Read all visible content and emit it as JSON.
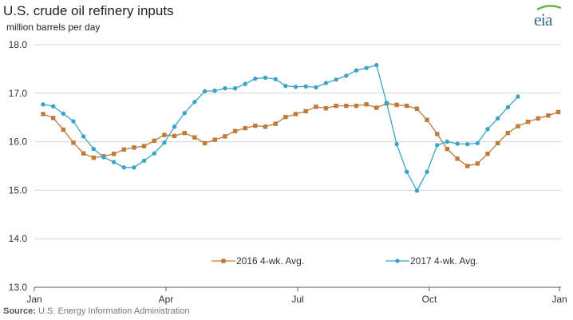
{
  "title": "U.S. crude oil refinery inputs",
  "subtitle": "million barrels per day",
  "logo_text": "eia",
  "source": {
    "label": "Source:",
    "text": "U.S. Energy Information Administration"
  },
  "chart_data": {
    "type": "line",
    "title": "U.S. crude oil refinery inputs",
    "ylabel": "million barrels per day",
    "xlabel": "",
    "ylim": [
      13.0,
      18.0
    ],
    "yticks": [
      "18.0",
      "17.0",
      "16.0",
      "15.0",
      "14.0",
      "13.0"
    ],
    "xticks": [
      "Jan",
      "Apr",
      "Jul",
      "Oct",
      "Jan"
    ],
    "grid": "horizontal",
    "legend_position": "bottom",
    "series": [
      {
        "name": "2016 4-wk. Avg.",
        "color": "#c07a3a",
        "marker": "square",
        "x": [
          0,
          1,
          2,
          3,
          4,
          5,
          6,
          7,
          8,
          9,
          10,
          11,
          12,
          13,
          14,
          15,
          16,
          17,
          18,
          19,
          20,
          21,
          22,
          23,
          24,
          25,
          26,
          27,
          28,
          29,
          30,
          31,
          32,
          33,
          34,
          35,
          36,
          37,
          38,
          39,
          40,
          41,
          42,
          43,
          44,
          45,
          46,
          47,
          48,
          49,
          50,
          51
        ],
        "values": [
          16.57,
          16.49,
          16.25,
          15.98,
          15.76,
          15.67,
          15.7,
          15.75,
          15.84,
          15.88,
          15.91,
          16.02,
          16.14,
          16.12,
          16.18,
          16.09,
          15.97,
          16.04,
          16.11,
          16.22,
          16.28,
          16.33,
          16.31,
          16.37,
          16.51,
          16.57,
          16.63,
          16.72,
          16.69,
          16.74,
          16.74,
          16.74,
          16.77,
          16.7,
          16.79,
          16.76,
          16.74,
          16.68,
          16.45,
          16.16,
          15.85,
          15.65,
          15.5,
          15.55,
          15.75,
          15.97,
          16.18,
          16.32,
          16.41,
          16.48,
          16.54,
          16.61
        ]
      },
      {
        "name": "2017 4-wk. Avg.",
        "color": "#3aa4c8",
        "marker": "circle",
        "x": [
          0,
          1,
          2,
          3,
          4,
          5,
          6,
          7,
          8,
          9,
          10,
          11,
          12,
          13,
          14,
          15,
          16,
          17,
          18,
          19,
          20,
          21,
          22,
          23,
          24,
          25,
          26,
          27,
          28,
          29,
          30,
          31,
          32,
          33,
          34,
          35,
          36,
          37,
          38,
          39,
          40,
          41,
          42,
          43,
          44,
          45,
          46,
          47
        ],
        "values": [
          16.77,
          16.73,
          16.58,
          16.42,
          16.11,
          15.85,
          15.68,
          15.58,
          15.47,
          15.47,
          15.61,
          15.76,
          15.98,
          16.31,
          16.59,
          16.82,
          17.04,
          17.05,
          17.1,
          17.1,
          17.19,
          17.3,
          17.32,
          17.29,
          17.15,
          17.13,
          17.14,
          17.12,
          17.21,
          17.28,
          17.36,
          17.47,
          17.52,
          17.58,
          16.8,
          15.95,
          15.38,
          14.99,
          15.38,
          15.93,
          16.0,
          15.96,
          15.95,
          15.97,
          16.26,
          16.48,
          16.71,
          16.93
        ]
      }
    ]
  }
}
